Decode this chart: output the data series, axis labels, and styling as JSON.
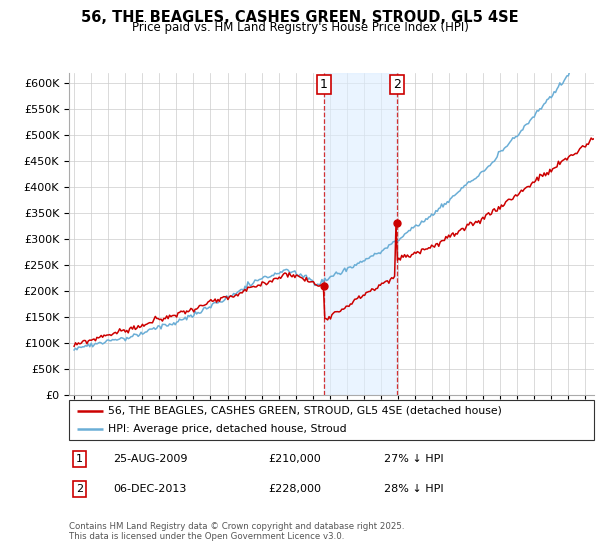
{
  "title": "56, THE BEAGLES, CASHES GREEN, STROUD, GL5 4SE",
  "subtitle": "Price paid vs. HM Land Registry's House Price Index (HPI)",
  "ylim": [
    0,
    620000
  ],
  "yticks": [
    0,
    50000,
    100000,
    150000,
    200000,
    250000,
    300000,
    350000,
    400000,
    450000,
    500000,
    550000,
    600000
  ],
  "xlim_start": 1994.7,
  "xlim_end": 2025.5,
  "legend_line1": "56, THE BEAGLES, CASHES GREEN, STROUD, GL5 4SE (detached house)",
  "legend_line2": "HPI: Average price, detached house, Stroud",
  "marker1_date": 2009.65,
  "marker1_label": "1",
  "marker1_price": 210000,
  "marker2_date": 2013.92,
  "marker2_label": "2",
  "marker2_price": 228000,
  "footer": "Contains HM Land Registry data © Crown copyright and database right 2025.\nThis data is licensed under the Open Government Licence v3.0.",
  "hpi_color": "#6baed6",
  "price_color": "#cc0000",
  "shade_color": "#ddeeff",
  "marker_border": "#cc0000"
}
